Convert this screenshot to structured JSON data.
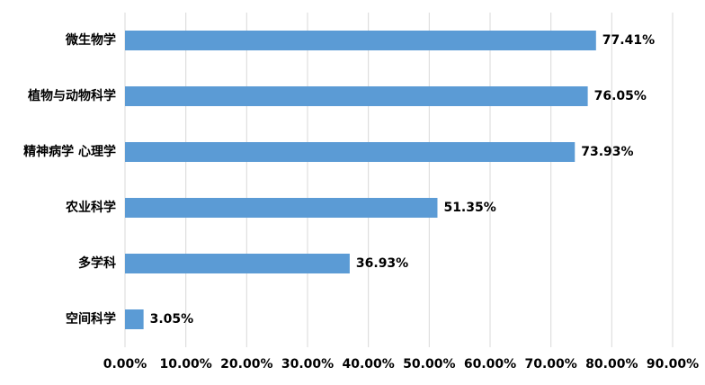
{
  "chart_data": {
    "type": "barh",
    "categories": [
      "微生物学",
      "植物与动物科学",
      "精神病学 心理学",
      "农业科学",
      "多学科",
      "空间科学"
    ],
    "values": [
      77.41,
      76.05,
      73.93,
      51.35,
      36.93,
      3.05
    ],
    "value_labels": [
      "77.41%",
      "76.05%",
      "73.93%",
      "51.35%",
      "36.93%",
      "3.05%"
    ],
    "color": "#5b9bd5",
    "xlim": [
      0,
      90
    ],
    "xticks": [
      {
        "value": 0,
        "label": "0.00%"
      },
      {
        "value": 10,
        "label": "10.00%"
      },
      {
        "value": 20,
        "label": "20.00%"
      },
      {
        "value": 30,
        "label": "30.00%"
      },
      {
        "value": 40,
        "label": "40.00%"
      },
      {
        "value": 50,
        "label": "50.00%"
      },
      {
        "value": 60,
        "label": "60.00%"
      },
      {
        "value": 70,
        "label": "70.00%"
      },
      {
        "value": 80,
        "label": "80.00%"
      },
      {
        "value": 90,
        "label": "90.00%"
      }
    ],
    "grid": true
  }
}
